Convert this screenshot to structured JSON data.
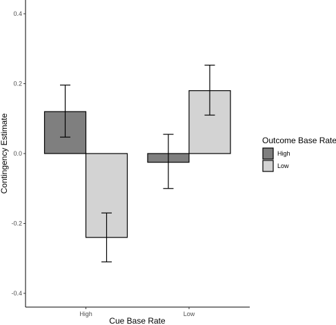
{
  "chart_data": {
    "type": "bar",
    "xlabel": "Cue Base Rate",
    "ylabel": "Contingency Estimate",
    "categories": [
      "High",
      "Low"
    ],
    "ylim": [
      -0.44,
      0.44
    ],
    "yticks": [
      -0.4,
      -0.2,
      0.0,
      0.2,
      0.4
    ],
    "ytick_labels": [
      "-0.4",
      "-0.2",
      "0.0",
      "0.2",
      "0.4"
    ],
    "grid": false,
    "legend": {
      "title": "Outcome Base Rate",
      "position": "right"
    },
    "series": [
      {
        "name": "High",
        "color": "#7f7f7f",
        "values": [
          0.12,
          -0.025
        ],
        "err_low": [
          0.047,
          -0.1
        ],
        "err_high": [
          0.196,
          0.055
        ]
      },
      {
        "name": "Low",
        "color": "#d3d3d3",
        "values": [
          -0.24,
          0.18
        ],
        "err_low": [
          -0.31,
          0.11
        ],
        "err_high": [
          -0.17,
          0.253
        ]
      }
    ]
  }
}
